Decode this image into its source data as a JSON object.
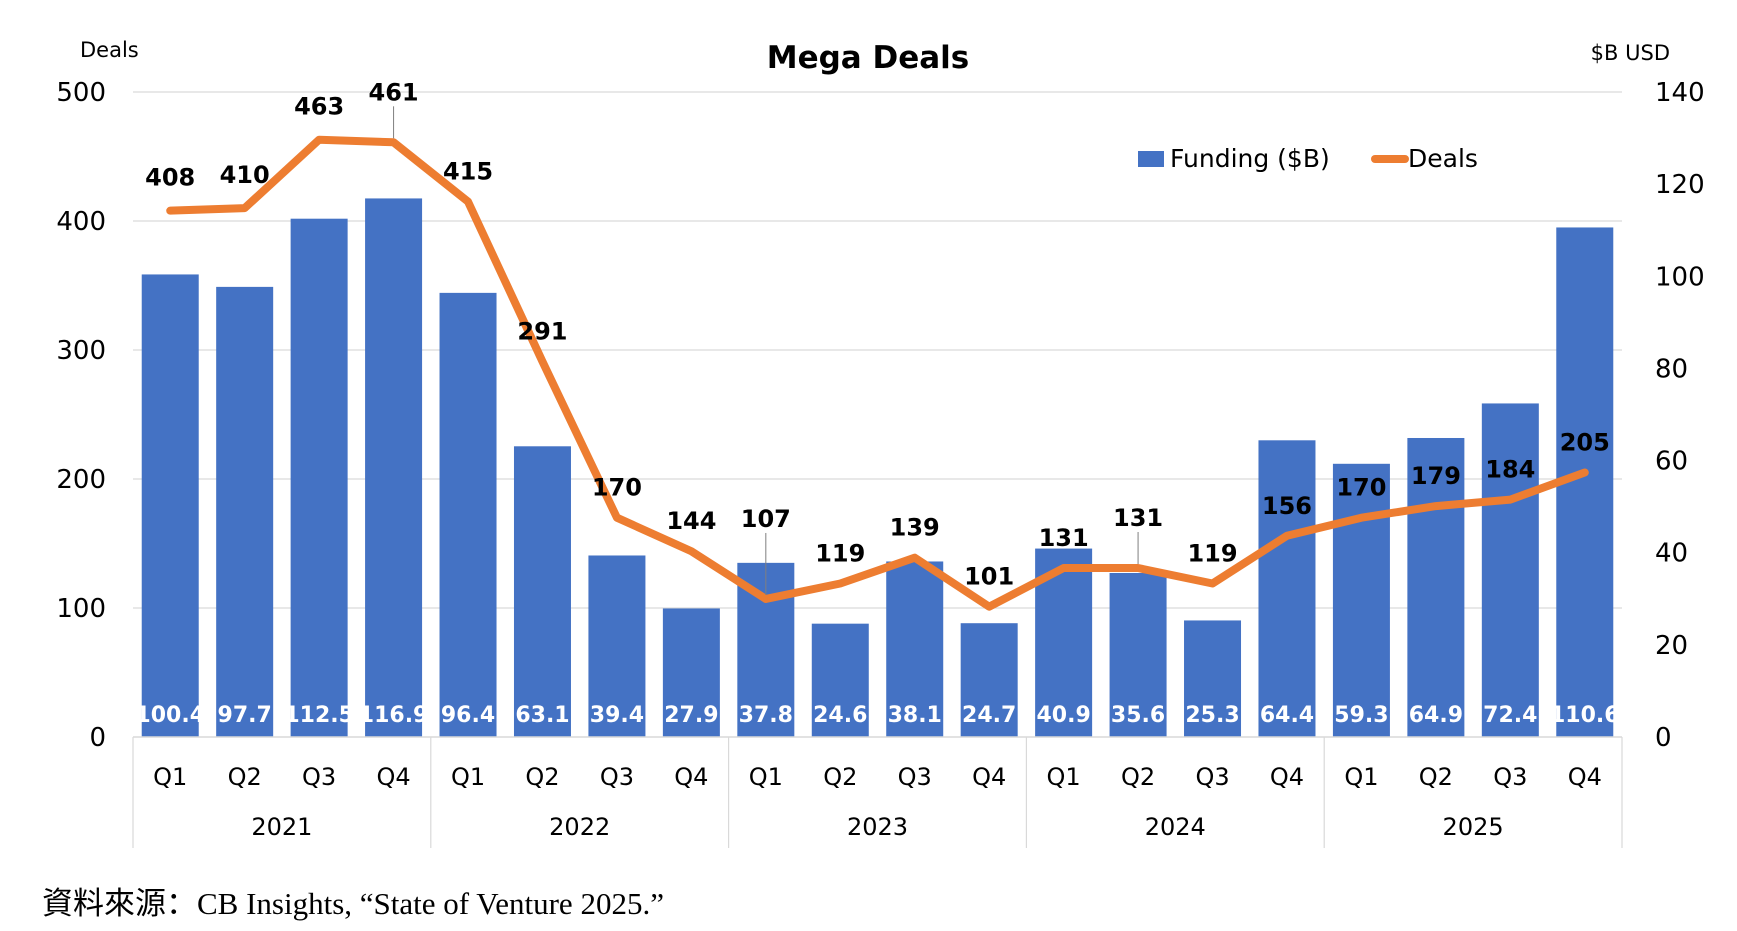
{
  "chart_data": {
    "type": "bar+line",
    "title": "Mega Deals",
    "left_axis_label": "Deals",
    "right_axis_label": "$B USD",
    "left_axis": {
      "min": 0,
      "max": 500,
      "ticks": [
        0,
        100,
        200,
        300,
        400,
        500
      ]
    },
    "right_axis": {
      "min": 0,
      "max": 140,
      "ticks": [
        0,
        20,
        40,
        60,
        80,
        100,
        120,
        140
      ]
    },
    "years": [
      "2021",
      "2022",
      "2023",
      "2024",
      "2025"
    ],
    "quarters": [
      "Q1",
      "Q2",
      "Q3",
      "Q4",
      "Q1",
      "Q2",
      "Q3",
      "Q4",
      "Q1",
      "Q2",
      "Q3",
      "Q4",
      "Q1",
      "Q2",
      "Q3",
      "Q4",
      "Q1",
      "Q2",
      "Q3",
      "Q4"
    ],
    "series": [
      {
        "name": "Funding ($B)",
        "kind": "bar",
        "axis": "right",
        "color": "#4472C4",
        "values": [
          100.4,
          97.7,
          112.5,
          116.9,
          96.4,
          63.1,
          39.4,
          27.9,
          37.8,
          24.6,
          38.1,
          24.7,
          40.9,
          35.6,
          25.3,
          64.4,
          59.3,
          64.9,
          72.4,
          110.6
        ],
        "labels": [
          "100.4",
          "97.7",
          "112.5",
          "116.9",
          "96.4",
          "63.1",
          "39.4",
          "27.9",
          "37.8",
          "24.6",
          "38.1",
          "24.7",
          "40.9",
          "35.6",
          "25.3",
          "64.4",
          "59.3",
          "64.9",
          "72.4",
          "110.6"
        ]
      },
      {
        "name": "Deals",
        "kind": "line",
        "axis": "left",
        "color": "#ED7D31",
        "values": [
          408,
          410,
          463,
          461,
          415,
          291,
          170,
          144,
          107,
          119,
          139,
          101,
          131,
          131,
          119,
          156,
          170,
          179,
          184,
          205
        ],
        "labels": [
          "408",
          "410",
          "463",
          "461",
          "415",
          "291",
          "170",
          "144",
          "107",
          "119",
          "139",
          "101",
          "131",
          "131",
          "119",
          "156",
          "170",
          "179",
          "184",
          "205"
        ]
      }
    ],
    "legend": [
      "Funding ($B)",
      "Deals"
    ],
    "legend_position": "top-right",
    "grid": true
  },
  "source": "資料來源：CB Insights, “State of Venture 2025.”"
}
